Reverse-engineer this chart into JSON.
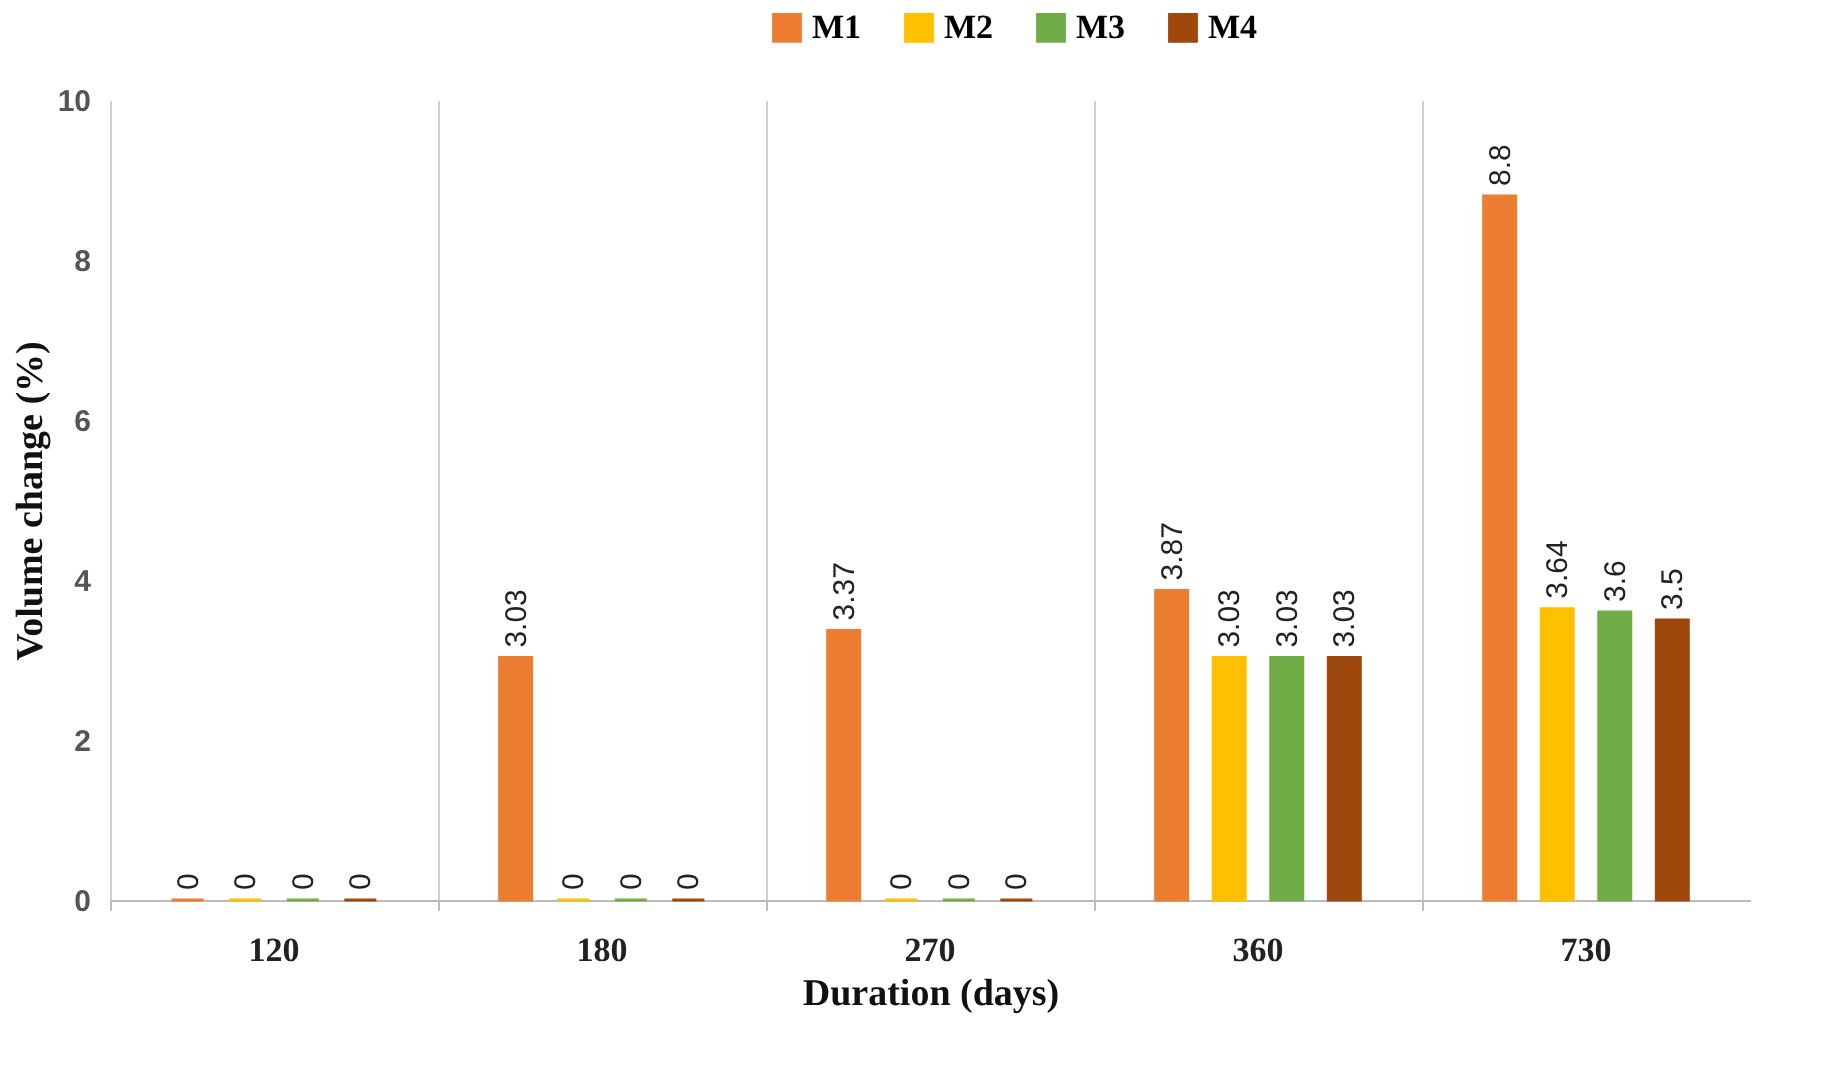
{
  "chart_data": {
    "type": "bar",
    "xlabel": "Duration (days)",
    "ylabel": "Volume change (%)",
    "categories": [
      "120",
      "180",
      "270",
      "360",
      "730"
    ],
    "series": [
      {
        "name": "M1",
        "color": "#ed7d31",
        "values": [
          0,
          3.03,
          3.37,
          3.87,
          8.8
        ]
      },
      {
        "name": "M2",
        "color": "#ffc000",
        "values": [
          0,
          0,
          0,
          3.03,
          3.64
        ]
      },
      {
        "name": "M3",
        "color": "#70ad47",
        "values": [
          0,
          0,
          0,
          3.03,
          3.6
        ]
      },
      {
        "name": "M4",
        "color": "#9e480e",
        "values": [
          0,
          0,
          0,
          3.03,
          3.5
        ]
      }
    ],
    "ylim": [
      0,
      10
    ],
    "yticks": [
      0,
      2,
      4,
      6,
      8,
      10
    ],
    "grid": "x",
    "legend": "top",
    "data_labels": true
  }
}
